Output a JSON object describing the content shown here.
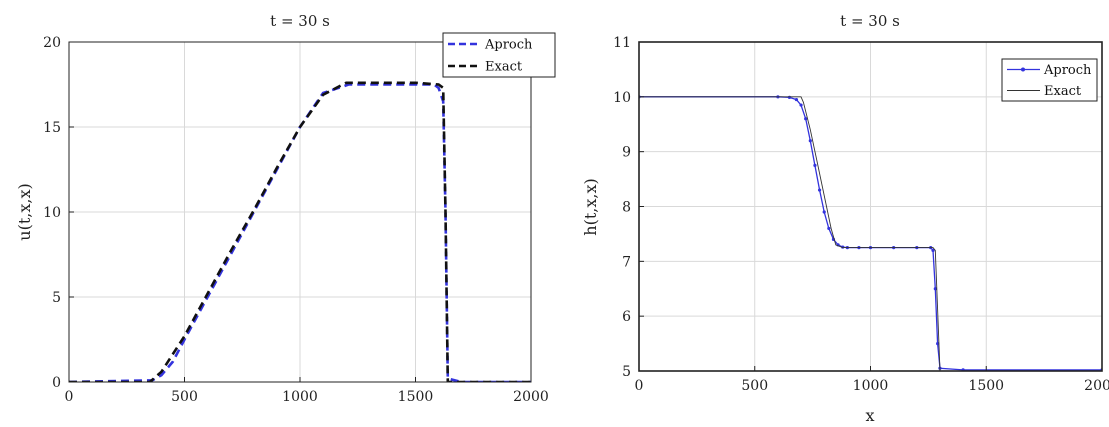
{
  "chart_data": [
    {
      "type": "line",
      "title": "t = 30 s",
      "xlabel": "",
      "ylabel": "u(t,x,x)",
      "xlim": [
        0,
        2000
      ],
      "ylim": [
        0,
        20
      ],
      "xticks": [
        0,
        500,
        1000,
        1500,
        2000
      ],
      "yticks": [
        0,
        5,
        10,
        15,
        20
      ],
      "grid": true,
      "legend_position": "top-right",
      "series": [
        {
          "name": "Aproch",
          "color": "#3333dd",
          "style": "dashed",
          "x": [
            0,
            360,
            400,
            450,
            500,
            600,
            700,
            800,
            900,
            1000,
            1100,
            1190,
            1210,
            1300,
            1400,
            1500,
            1580,
            1600,
            1620,
            1630,
            1640,
            1700,
            2000
          ],
          "y": [
            0,
            0.1,
            0.4,
            1.2,
            2.5,
            5.0,
            7.5,
            10.0,
            12.5,
            15.0,
            17.0,
            17.4,
            17.5,
            17.5,
            17.5,
            17.5,
            17.5,
            17.3,
            16.5,
            10.0,
            0.2,
            0,
            0
          ]
        },
        {
          "name": "Exact",
          "color": "#111111",
          "style": "dashed",
          "x": [
            0,
            350,
            400,
            500,
            600,
            700,
            800,
            900,
            1000,
            1100,
            1200,
            1300,
            1400,
            1500,
            1600,
            1620,
            1630,
            1640,
            2000
          ],
          "y": [
            0,
            0,
            0.6,
            2.7,
            5.2,
            7.7,
            10.1,
            12.6,
            15.0,
            16.9,
            17.6,
            17.6,
            17.6,
            17.6,
            17.5,
            17.3,
            10.0,
            0,
            0
          ]
        }
      ]
    },
    {
      "type": "line",
      "title": "t = 30 s",
      "xlabel": "x",
      "ylabel": "h(t,x,x)",
      "xlim": [
        0,
        2000
      ],
      "ylim": [
        5,
        11
      ],
      "xticks": [
        0,
        500,
        1000,
        1500,
        2000
      ],
      "yticks": [
        5,
        6,
        7,
        8,
        9,
        10,
        11
      ],
      "grid": true,
      "legend_position": "top-right",
      "series": [
        {
          "name": "Aproch",
          "color": "#3333dd",
          "style": "solid-dot",
          "x": [
            0,
            600,
            650,
            680,
            700,
            720,
            740,
            760,
            780,
            800,
            820,
            840,
            860,
            880,
            900,
            950,
            1000,
            1100,
            1200,
            1260,
            1270,
            1280,
            1290,
            1300,
            1400,
            2000
          ],
          "y": [
            10,
            10,
            9.99,
            9.95,
            9.85,
            9.6,
            9.2,
            8.75,
            8.3,
            7.9,
            7.6,
            7.4,
            7.3,
            7.26,
            7.25,
            7.25,
            7.25,
            7.25,
            7.25,
            7.25,
            7.2,
            6.5,
            5.5,
            5.05,
            5.02,
            5.02
          ]
        },
        {
          "name": "Exact",
          "color": "#333333",
          "style": "solid",
          "x": [
            0,
            700,
            710,
            740,
            770,
            800,
            830,
            850,
            880,
            1000,
            1270,
            1280,
            1300,
            2000
          ],
          "y": [
            10,
            10,
            9.9,
            9.4,
            8.8,
            8.2,
            7.6,
            7.3,
            7.25,
            7.25,
            7.25,
            7.2,
            5.0,
            5.0
          ]
        }
      ]
    }
  ]
}
